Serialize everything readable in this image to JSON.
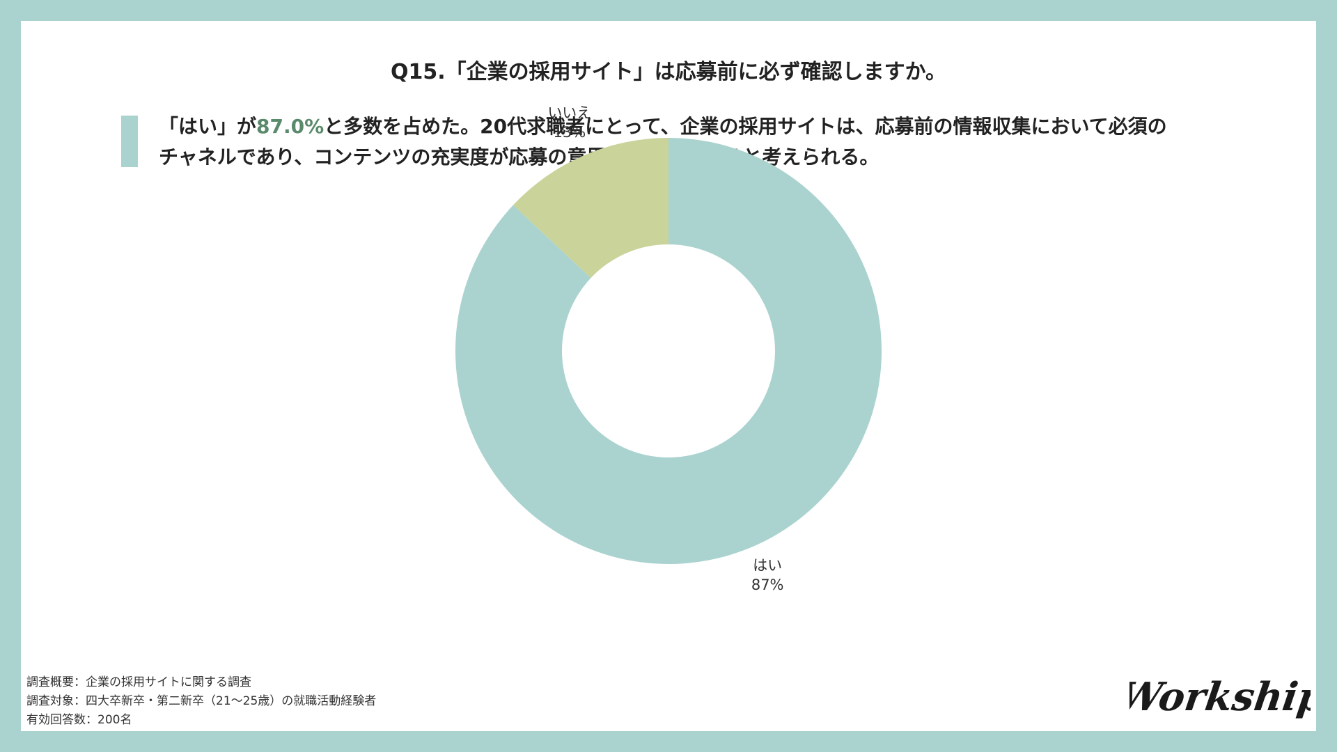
{
  "title": "Q15.「企業の採用サイト」は応募前に必ず確認しますか。",
  "summary": {
    "prefix": "「はい」が",
    "highlight": "87.0%",
    "line1_rest": "と多数を占めた。20代求職者にとって、企業の採用サイトは、応募前の情報収集において必須の",
    "line2": "チャネルであり、コンテンツの充実度が応募の意思決定を左右すると考えられる。"
  },
  "chart_data": {
    "type": "pie",
    "donut": true,
    "slices": [
      {
        "label": "はい",
        "value": 87,
        "value_label": "87%",
        "color": "#aad3d0"
      },
      {
        "label": "いいえ",
        "value": 13,
        "value_label": "13%",
        "color": "#c9d39a"
      }
    ],
    "start": "12 o'clock",
    "direction": "clockwise"
  },
  "footnotes": {
    "overview": "調査概要：企業の採用サイトに関する調査",
    "target": "調査対象：四大卒新卒・第二新卒（21〜25歳）の就職活動経験者",
    "responses": "有効回答数：200名"
  },
  "logo": {
    "text": "Workship",
    "color": "#1a1a1a"
  }
}
